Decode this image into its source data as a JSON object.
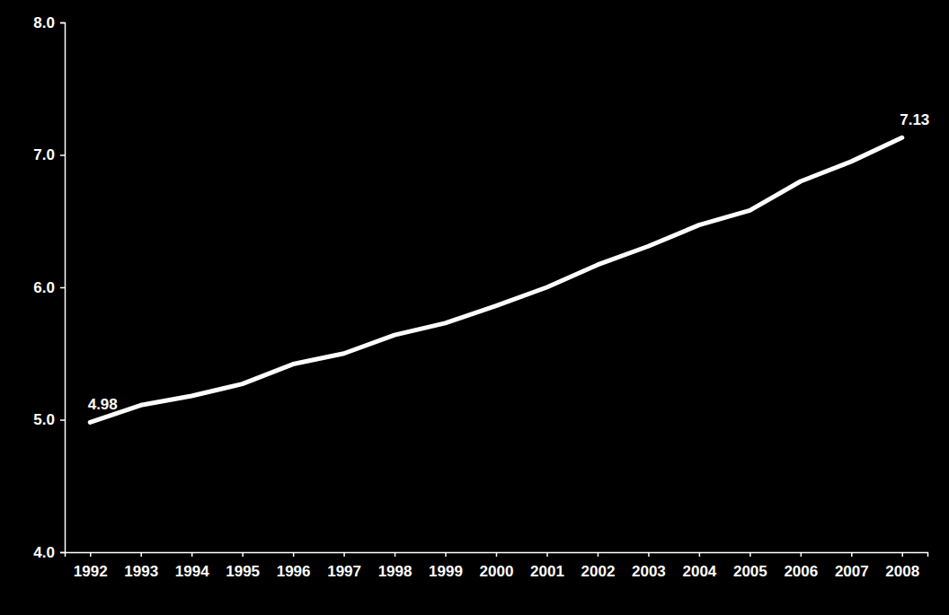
{
  "chart_data": {
    "type": "line",
    "categories": [
      "1992",
      "1993",
      "1994",
      "1995",
      "1996",
      "1997",
      "1998",
      "1999",
      "2000",
      "2001",
      "2002",
      "2003",
      "2004",
      "2005",
      "2006",
      "2007",
      "2008"
    ],
    "values": [
      4.98,
      5.11,
      5.18,
      5.27,
      5.42,
      5.5,
      5.64,
      5.73,
      5.86,
      6.0,
      6.17,
      6.31,
      6.47,
      6.58,
      6.8,
      6.95,
      7.13
    ],
    "data_labels": true,
    "value_labels": [
      "4.98",
      null,
      null,
      null,
      null,
      null,
      null,
      null,
      null,
      null,
      null,
      null,
      null,
      null,
      null,
      null,
      "7.13"
    ],
    "color": "#ffffff",
    "ylim": [
      4,
      8
    ],
    "yticks": [
      {
        "value": 4,
        "label": "4.0"
      },
      {
        "value": 5,
        "label": "5.0"
      },
      {
        "value": 6,
        "label": "6.0"
      },
      {
        "value": 7,
        "label": "7.0"
      },
      {
        "value": 8,
        "label": "8.0"
      }
    ],
    "grid": false
  }
}
